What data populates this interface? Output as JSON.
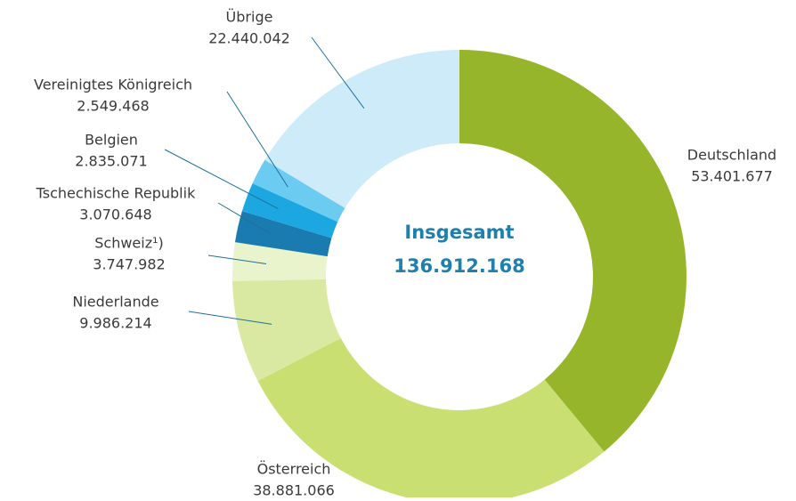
{
  "chart_data": {
    "type": "donut",
    "categories": [
      "Deutschland",
      "Österreich",
      "Niederlande",
      "Schweiz¹)",
      "Tschechische Republik",
      "Belgien",
      "Vereinigtes Königreich",
      "Übrige"
    ],
    "values": [
      53401677,
      38881066,
      9986214,
      3747982,
      3070648,
      2835071,
      2549468,
      22440042
    ],
    "value_labels": [
      "53.401.677",
      "38.881.066",
      "9.986.214",
      "3.747.982",
      "3.070.648",
      "2.835.071",
      "2.549.468",
      "22.440.042"
    ],
    "colors": [
      "#97b52a",
      "#c9df72",
      "#d9e9a2",
      "#e9f3cc",
      "#1a7bb0",
      "#1ca7e1",
      "#6ccbf1",
      "#cdebf9"
    ],
    "center_title": "Insgesamt",
    "center_value": "136.912.168"
  }
}
